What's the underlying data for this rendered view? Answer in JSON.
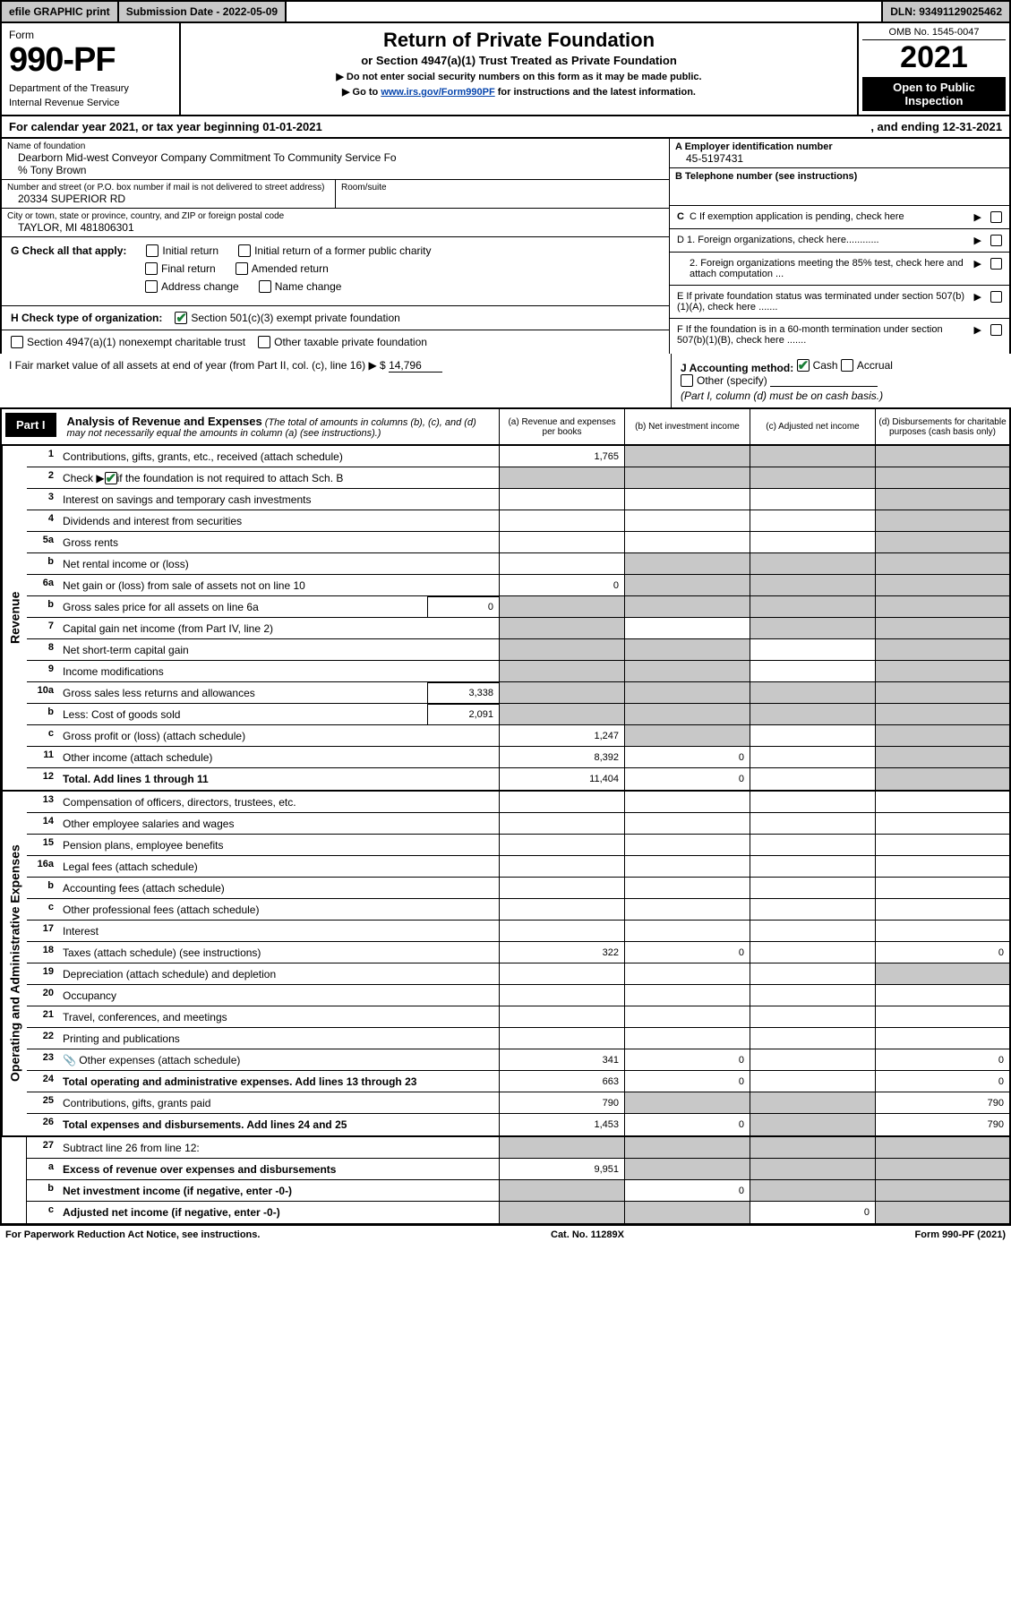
{
  "colors": {
    "header_gray": "#c8c8c8",
    "black": "#000000",
    "white": "#ffffff",
    "check_green": "#1a7f37",
    "link_blue": "#0645ad"
  },
  "top_bar": {
    "efile": "efile GRAPHIC print",
    "submission_label": "Submission Date - 2022-05-09",
    "dln": "DLN: 93491129025462"
  },
  "header": {
    "form_label": "Form",
    "form_number": "990-PF",
    "dept1": "Department of the Treasury",
    "dept2": "Internal Revenue Service",
    "title": "Return of Private Foundation",
    "subtitle": "or Section 4947(a)(1) Trust Treated as Private Foundation",
    "note1": "▶ Do not enter social security numbers on this form as it may be made public.",
    "note2_pre": "▶ Go to ",
    "note2_link": "www.irs.gov/Form990PF",
    "note2_post": " for instructions and the latest information.",
    "omb": "OMB No. 1545-0047",
    "year": "2021",
    "open": "Open to Public Inspection"
  },
  "cal_year": {
    "left": "For calendar year 2021, or tax year beginning 01-01-2021",
    "right": ", and ending 12-31-2021"
  },
  "identity": {
    "name_label": "Name of foundation",
    "name": "Dearborn Mid-west Conveyor Company Commitment To Community Service Fo",
    "care_of": "% Tony Brown",
    "addr_label": "Number and street (or P.O. box number if mail is not delivered to street address)",
    "addr": "20334 SUPERIOR RD",
    "room_label": "Room/suite",
    "room": "",
    "city_label": "City or town, state or province, country, and ZIP or foreign postal code",
    "city": "TAYLOR, MI  481806301",
    "ein_label": "A Employer identification number",
    "ein": "45-5197431",
    "phone_label": "B Telephone number (see instructions)",
    "c_label": "C If exemption application is pending, check here",
    "d1": "D 1. Foreign organizations, check here............",
    "d2": "2. Foreign organizations meeting the 85% test, check here and attach computation ...",
    "e_label": "E  If private foundation status was terminated under section 507(b)(1)(A), check here .......",
    "f_label": "F  If the foundation is in a 60-month termination under section 507(b)(1)(B), check here .......",
    "g_label": "G Check all that apply:",
    "g_opts": [
      "Initial return",
      "Initial return of a former public charity",
      "Final return",
      "Amended return",
      "Address change",
      "Name change"
    ],
    "h_label": "H Check type of organization:",
    "h_opt1": "Section 501(c)(3) exempt private foundation",
    "h_opt2": "Section 4947(a)(1) nonexempt charitable trust",
    "h_opt3": "Other taxable private foundation",
    "i_label": "I Fair market value of all assets at end of year (from Part II, col. (c), line 16)",
    "i_val": "14,796",
    "j_label": "J Accounting method:",
    "j_cash": "Cash",
    "j_accrual": "Accrual",
    "j_other": "Other (specify)",
    "j_note": "(Part I, column (d) must be on cash basis.)"
  },
  "part1": {
    "label": "Part I",
    "title": "Analysis of Revenue and Expenses",
    "note": " (The total of amounts in columns (b), (c), and (d) may not necessarily equal the amounts in column (a) (see instructions).)",
    "col_a": "(a)   Revenue and expenses per books",
    "col_b": "(b)   Net investment income",
    "col_c": "(c)   Adjusted net income",
    "col_d": "(d)   Disbursements for charitable purposes (cash basis only)"
  },
  "side_labels": {
    "revenue": "Revenue",
    "expenses": "Operating and Administrative Expenses"
  },
  "rows": {
    "r1": {
      "no": "1",
      "desc": "Contributions, gifts, grants, etc., received (attach schedule)",
      "a": "1,765"
    },
    "r2": {
      "no": "2",
      "desc_pre": "Check ▶",
      "desc_post": " if the foundation is not required to attach Sch. B"
    },
    "r3": {
      "no": "3",
      "desc": "Interest on savings and temporary cash investments"
    },
    "r4": {
      "no": "4",
      "desc": "Dividends and interest from securities"
    },
    "r5a": {
      "no": "5a",
      "desc": "Gross rents"
    },
    "r5b": {
      "no": "b",
      "desc": "Net rental income or (loss)"
    },
    "r6a": {
      "no": "6a",
      "desc": "Net gain or (loss) from sale of assets not on line 10",
      "a": "0"
    },
    "r6b": {
      "no": "b",
      "desc": "Gross sales price for all assets on line 6a",
      "inline": "0"
    },
    "r7": {
      "no": "7",
      "desc": "Capital gain net income (from Part IV, line 2)"
    },
    "r8": {
      "no": "8",
      "desc": "Net short-term capital gain"
    },
    "r9": {
      "no": "9",
      "desc": "Income modifications"
    },
    "r10a": {
      "no": "10a",
      "desc": "Gross sales less returns and allowances",
      "inline": "3,338"
    },
    "r10b": {
      "no": "b",
      "desc": "Less: Cost of goods sold",
      "inline": "2,091"
    },
    "r10c": {
      "no": "c",
      "desc": "Gross profit or (loss) (attach schedule)",
      "a": "1,247"
    },
    "r11": {
      "no": "11",
      "desc": "Other income (attach schedule)",
      "a": "8,392",
      "b": "0"
    },
    "r12": {
      "no": "12",
      "desc": "Total. Add lines 1 through 11",
      "a": "11,404",
      "b": "0",
      "bold": true
    },
    "r13": {
      "no": "13",
      "desc": "Compensation of officers, directors, trustees, etc."
    },
    "r14": {
      "no": "14",
      "desc": "Other employee salaries and wages"
    },
    "r15": {
      "no": "15",
      "desc": "Pension plans, employee benefits"
    },
    "r16a": {
      "no": "16a",
      "desc": "Legal fees (attach schedule)"
    },
    "r16b": {
      "no": "b",
      "desc": "Accounting fees (attach schedule)"
    },
    "r16c": {
      "no": "c",
      "desc": "Other professional fees (attach schedule)"
    },
    "r17": {
      "no": "17",
      "desc": "Interest"
    },
    "r18": {
      "no": "18",
      "desc": "Taxes (attach schedule) (see instructions)",
      "a": "322",
      "b": "0",
      "d": "0"
    },
    "r19": {
      "no": "19",
      "desc": "Depreciation (attach schedule) and depletion"
    },
    "r20": {
      "no": "20",
      "desc": "Occupancy"
    },
    "r21": {
      "no": "21",
      "desc": "Travel, conferences, and meetings"
    },
    "r22": {
      "no": "22",
      "desc": "Printing and publications"
    },
    "r23": {
      "no": "23",
      "desc": "Other expenses (attach schedule)",
      "icon": "📎",
      "a": "341",
      "b": "0",
      "d": "0"
    },
    "r24": {
      "no": "24",
      "desc": "Total operating and administrative expenses. Add lines 13 through 23",
      "a": "663",
      "b": "0",
      "d": "0",
      "bold": true
    },
    "r25": {
      "no": "25",
      "desc": "Contributions, gifts, grants paid",
      "a": "790",
      "d": "790"
    },
    "r26": {
      "no": "26",
      "desc": "Total expenses and disbursements. Add lines 24 and 25",
      "a": "1,453",
      "b": "0",
      "d": "790",
      "bold": true
    },
    "r27": {
      "no": "27",
      "desc": "Subtract line 26 from line 12:"
    },
    "r27a": {
      "no": "a",
      "desc": "Excess of revenue over expenses and disbursements",
      "a": "9,951",
      "bold": true
    },
    "r27b": {
      "no": "b",
      "desc": "Net investment income (if negative, enter -0-)",
      "b": "0",
      "bold": true
    },
    "r27c": {
      "no": "c",
      "desc": "Adjusted net income (if negative, enter -0-)",
      "c": "0",
      "bold": true
    }
  },
  "footer": {
    "left": "For Paperwork Reduction Act Notice, see instructions.",
    "mid": "Cat. No. 11289X",
    "right": "Form 990-PF (2021)"
  }
}
